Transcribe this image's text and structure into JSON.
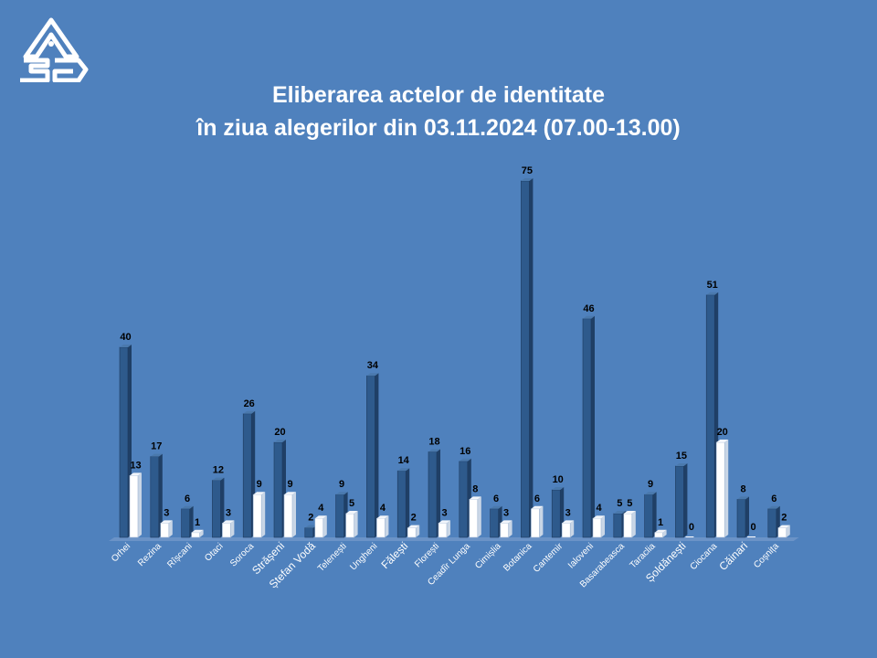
{
  "title": {
    "line1": "Eliberarea actelor de identitate",
    "line2": "în ziua alegerilor din 03.11.2024 (07.00-13.00)"
  },
  "colors": {
    "background": "#4f81bd",
    "series_dark": "#2e5a8c",
    "series_light": "#ffffff"
  },
  "chart_data": {
    "type": "bar",
    "title": "Eliberarea actelor de identitate în ziua alegerilor din 03.11.2024 (07.00-13.00)",
    "categories": [
      "Orhei",
      "Rezina",
      "Rîșcani",
      "Otaci",
      "Soroca",
      "Strășeni",
      "Ștefan Vodă",
      "Telenești",
      "Ungheni",
      "Fălești",
      "Florești",
      "Ceadîr Lunga",
      "Cimișlia",
      "Botanica",
      "Cantemir",
      "Ialoveni",
      "Basarabeasca",
      "Taraclia",
      "Șoldănești",
      "Ciocana",
      "Căinari",
      "Coșnița"
    ],
    "series": [
      {
        "values": [
          40,
          17,
          6,
          12,
          26,
          20,
          2,
          9,
          34,
          14,
          18,
          16,
          6,
          75,
          10,
          46,
          5,
          9,
          15,
          51,
          8,
          6
        ]
      },
      {
        "values": [
          13,
          3,
          1,
          3,
          9,
          9,
          4,
          5,
          4,
          2,
          3,
          8,
          3,
          6,
          3,
          4,
          5,
          1,
          0,
          20,
          0,
          2
        ]
      }
    ],
    "ylim": [
      0,
      80
    ],
    "grid": false,
    "legend": "none",
    "bar_style": "3d-cylinder"
  }
}
